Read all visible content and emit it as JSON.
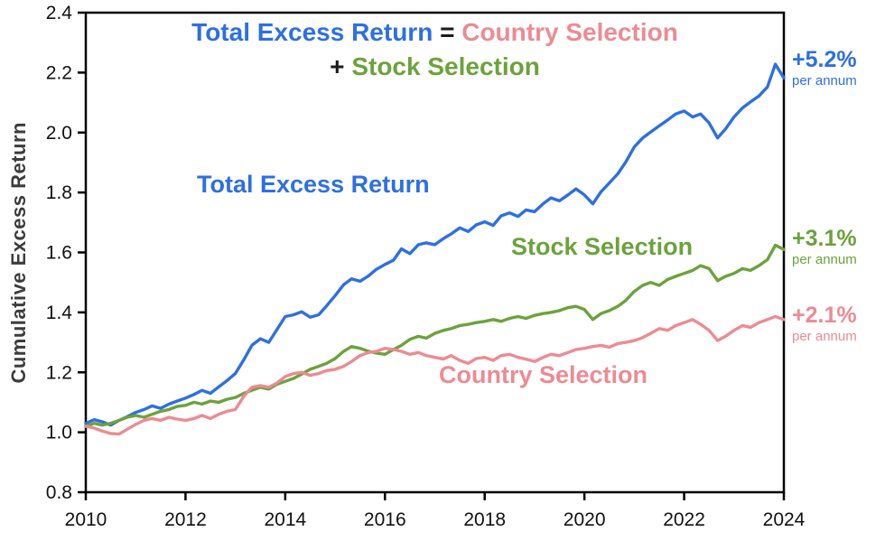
{
  "title": {
    "line1_part1": "Total Excess Return",
    "line1_sep": " = ",
    "line1_part2": "Country Selection",
    "line2_prefix": "+ ",
    "line2_part": "Stock Selection"
  },
  "ylabel": "Cumulative Excess Return",
  "series_labels": {
    "total": "Total Excess Return",
    "stock": "Stock Selection",
    "country": "Country Selection"
  },
  "annotations": [
    {
      "value": "+5.2%",
      "sub": "per annum"
    },
    {
      "value": "+3.1%",
      "sub": "per annum"
    },
    {
      "value": "+2.1%",
      "sub": "per annum"
    }
  ],
  "chart_data": {
    "type": "line",
    "title": "Total Excess Return = Country Selection + Stock Selection",
    "xlabel": "",
    "ylabel": "Cumulative Excess Return",
    "xlim": [
      2010,
      2024
    ],
    "ylim": [
      0.8,
      2.4
    ],
    "xticks": [
      2010,
      2012,
      2014,
      2016,
      2018,
      2020,
      2022,
      2024
    ],
    "yticks": [
      0.8,
      1.0,
      1.2,
      1.4,
      1.6,
      1.8,
      2.0,
      2.2,
      2.4
    ],
    "grid": false,
    "legend_position": "inline-labels",
    "x": [
      2010,
      2010.17,
      2010.33,
      2010.5,
      2010.67,
      2010.83,
      2011,
      2011.17,
      2011.33,
      2011.5,
      2011.67,
      2011.83,
      2012,
      2012.17,
      2012.33,
      2012.5,
      2012.67,
      2012.83,
      2013,
      2013.17,
      2013.33,
      2013.5,
      2013.67,
      2013.83,
      2014,
      2014.17,
      2014.33,
      2014.5,
      2014.67,
      2014.83,
      2015,
      2015.17,
      2015.33,
      2015.5,
      2015.67,
      2015.83,
      2016,
      2016.17,
      2016.33,
      2016.5,
      2016.67,
      2016.83,
      2017,
      2017.17,
      2017.33,
      2017.5,
      2017.67,
      2017.83,
      2018,
      2018.17,
      2018.33,
      2018.5,
      2018.67,
      2018.83,
      2019,
      2019.17,
      2019.33,
      2019.5,
      2019.67,
      2019.83,
      2020,
      2020.17,
      2020.33,
      2020.5,
      2020.67,
      2020.83,
      2021,
      2021.17,
      2021.33,
      2021.5,
      2021.67,
      2021.83,
      2022,
      2022.17,
      2022.33,
      2022.5,
      2022.67,
      2022.83,
      2023,
      2023.17,
      2023.33,
      2023.5,
      2023.67,
      2023.83,
      2024
    ],
    "series": [
      {
        "name": "Total Excess Return",
        "color": "#2E6FE3",
        "per_annum": "+5.2%",
        "values": [
          1.03,
          1.042,
          1.035,
          1.024,
          1.04,
          1.052,
          1.066,
          1.076,
          1.088,
          1.08,
          1.094,
          1.104,
          1.114,
          1.126,
          1.14,
          1.13,
          1.152,
          1.172,
          1.196,
          1.242,
          1.29,
          1.312,
          1.3,
          1.342,
          1.386,
          1.392,
          1.402,
          1.384,
          1.392,
          1.422,
          1.456,
          1.492,
          1.512,
          1.504,
          1.522,
          1.544,
          1.56,
          1.574,
          1.612,
          1.596,
          1.626,
          1.632,
          1.626,
          1.646,
          1.662,
          1.682,
          1.67,
          1.692,
          1.702,
          1.69,
          1.722,
          1.732,
          1.72,
          1.742,
          1.736,
          1.762,
          1.782,
          1.772,
          1.792,
          1.812,
          1.792,
          1.762,
          1.802,
          1.832,
          1.862,
          1.902,
          1.952,
          1.982,
          2.002,
          2.022,
          2.042,
          2.062,
          2.072,
          2.052,
          2.062,
          2.032,
          1.982,
          2.012,
          2.052,
          2.082,
          2.102,
          2.122,
          2.152,
          2.228,
          2.182
        ]
      },
      {
        "name": "Stock Selection",
        "color": "#6CA23C",
        "per_annum": "+3.1%",
        "values": [
          1.02,
          1.03,
          1.024,
          1.03,
          1.04,
          1.05,
          1.056,
          1.05,
          1.06,
          1.07,
          1.076,
          1.086,
          1.09,
          1.1,
          1.094,
          1.104,
          1.1,
          1.11,
          1.116,
          1.13,
          1.14,
          1.15,
          1.144,
          1.16,
          1.17,
          1.18,
          1.194,
          1.21,
          1.22,
          1.23,
          1.246,
          1.27,
          1.286,
          1.28,
          1.27,
          1.264,
          1.26,
          1.276,
          1.29,
          1.31,
          1.32,
          1.314,
          1.33,
          1.34,
          1.346,
          1.356,
          1.36,
          1.366,
          1.37,
          1.376,
          1.37,
          1.38,
          1.386,
          1.38,
          1.39,
          1.396,
          1.4,
          1.406,
          1.416,
          1.42,
          1.41,
          1.376,
          1.396,
          1.406,
          1.42,
          1.44,
          1.47,
          1.49,
          1.5,
          1.49,
          1.51,
          1.52,
          1.53,
          1.54,
          1.556,
          1.546,
          1.506,
          1.52,
          1.53,
          1.546,
          1.54,
          1.556,
          1.576,
          1.624,
          1.61
        ]
      },
      {
        "name": "Country Selection",
        "color": "#EC8B93",
        "per_annum": "+2.1%",
        "values": [
          1.02,
          1.014,
          1.004,
          0.996,
          0.994,
          1.01,
          1.026,
          1.04,
          1.046,
          1.04,
          1.05,
          1.044,
          1.04,
          1.046,
          1.056,
          1.046,
          1.06,
          1.07,
          1.076,
          1.12,
          1.15,
          1.156,
          1.15,
          1.164,
          1.186,
          1.196,
          1.2,
          1.19,
          1.196,
          1.206,
          1.21,
          1.22,
          1.236,
          1.256,
          1.266,
          1.27,
          1.28,
          1.276,
          1.27,
          1.26,
          1.266,
          1.256,
          1.25,
          1.244,
          1.256,
          1.24,
          1.23,
          1.246,
          1.25,
          1.24,
          1.256,
          1.26,
          1.25,
          1.244,
          1.236,
          1.25,
          1.26,
          1.256,
          1.266,
          1.276,
          1.28,
          1.286,
          1.29,
          1.284,
          1.296,
          1.3,
          1.306,
          1.316,
          1.33,
          1.346,
          1.34,
          1.356,
          1.366,
          1.376,
          1.36,
          1.34,
          1.306,
          1.32,
          1.34,
          1.356,
          1.35,
          1.366,
          1.376,
          1.386,
          1.376
        ]
      }
    ]
  }
}
